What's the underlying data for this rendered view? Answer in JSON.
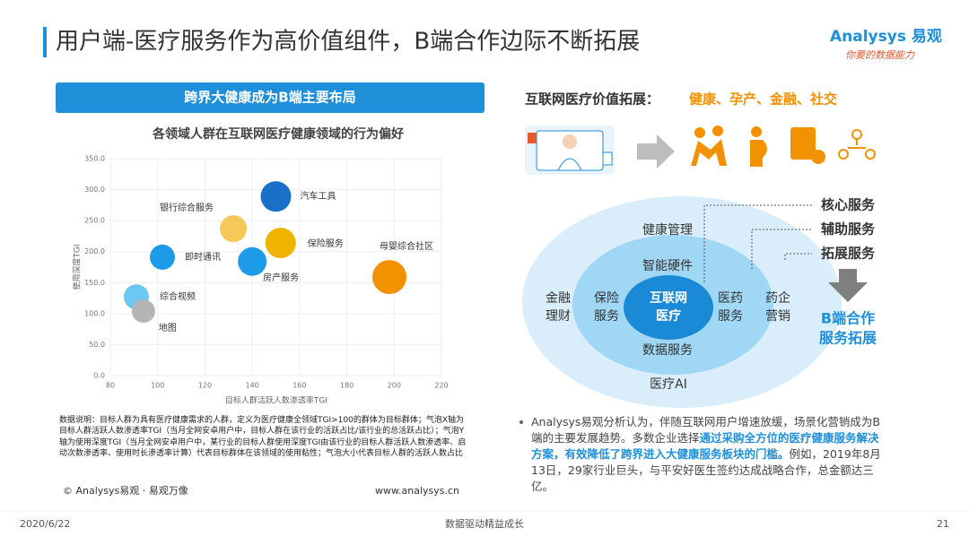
{
  "header": {
    "title": "用户端-医疗服务作为高价值组件，B端合作边际不断拓展",
    "logo": "Analysys 易观",
    "tagline": "你要的数据能力"
  },
  "left": {
    "banner": "跨界大健康成为B端主要布局",
    "note": "数据说明：目标人群为具有医疗健康需求的人群，定义为医疗健康全领域TGI>100的群体为目标群体；气泡X轴为目标人群活跃人数渗透率TGI（当月全网安卓用户中，目标人群在该行业的活跃占比/该行业的总活跃占比）；气泡Y轴为使用深度TGI（当月全网安卓用户中，某行业的目标人群使用深度TGI由该行业的目标人群活跃人数渗透率、启动次数渗透率、使用时长渗透率计算）代表目标群体在该领域的使用粘性；气泡大小代表目标人群的活跃人数占比",
    "copyright": "© Analysys易观 · 易观万像",
    "url": "www.analysys.cn"
  },
  "chart_data": {
    "type": "bubble",
    "title": "各领域人群在互联网医疗健康领域的行为偏好",
    "x_label": "目标人群活跃人数渗透率TGI",
    "y_label": "使用深度TGI",
    "xlim": [
      80,
      220
    ],
    "xticks": [
      80,
      100,
      120,
      140,
      160,
      180,
      200,
      220
    ],
    "ylim": [
      0,
      350
    ],
    "yticks": [
      {
        "value": 0,
        "label": "0.0"
      },
      {
        "value": 50,
        "label": "50.0"
      },
      {
        "value": 100,
        "label": "100.0"
      },
      {
        "value": 150,
        "label": "150.0"
      },
      {
        "value": 200,
        "label": "200.0"
      },
      {
        "value": 250,
        "label": "250.0"
      },
      {
        "value": 300,
        "label": "300.0"
      },
      {
        "value": 350,
        "label": "350.0"
      }
    ],
    "grid": true,
    "series": [
      {
        "name": "汽车工具",
        "color": "#1a6fc9",
        "x": [
          150
        ],
        "values": [
          289
        ],
        "sizes": [
          17
        ]
      },
      {
        "name": "银行综合服务",
        "color": "#f5c85a",
        "x": [
          132
        ],
        "values": [
          237
        ],
        "sizes": [
          15
        ]
      },
      {
        "name": "保险服务",
        "color": "#f0b400",
        "x": [
          152
        ],
        "values": [
          214
        ],
        "sizes": [
          17
        ]
      },
      {
        "name": "母婴综合社区",
        "color": "#f39200",
        "x": [
          198
        ],
        "values": [
          159
        ],
        "sizes": [
          19
        ]
      },
      {
        "name": "即时通讯",
        "color": "#1e9be8",
        "x": [
          102
        ],
        "values": [
          191
        ],
        "sizes": [
          14
        ]
      },
      {
        "name": "房产服务",
        "color": "#1e9be8",
        "x": [
          140
        ],
        "values": [
          184
        ],
        "sizes": [
          16
        ]
      },
      {
        "name": "综合视频",
        "color": "#6cc8f0",
        "x": [
          91
        ],
        "values": [
          127
        ],
        "sizes": [
          14
        ]
      },
      {
        "name": "地图",
        "color": "#b5b5b5",
        "x": [
          94
        ],
        "values": [
          104
        ],
        "sizes": [
          13
        ]
      }
    ]
  },
  "right": {
    "heading": "互联网医疗价值拓展：",
    "heading_items": "健康、孕产、金融、社交",
    "core": "互联网医疗",
    "core_lines": [
      "互联网",
      "医疗"
    ],
    "mid": {
      "top": "智能硬件",
      "left": [
        "保险",
        "服务"
      ],
      "right": [
        "医药",
        "服务"
      ],
      "bottom": "数据服务"
    },
    "outer": {
      "top": "健康管理",
      "left": [
        "金融",
        "理财"
      ],
      "right": [
        "药企",
        "营销"
      ],
      "bottom": "医疗AI"
    },
    "levels": [
      "核心服务",
      "辅助服务",
      "拓展服务"
    ],
    "result": [
      "B端合作",
      "服务拓展"
    ],
    "bullet": [
      "Analysys易观分析认为，伴随互联网用户增速放缓，场景化营销成为B端的主要发展趋势。多数企业选择",
      "通过采购全方位的医疗健康服务解决方案，有效降低了跨界进入大健康服务板块的门槛。",
      "例如，2019年8月13日，29家行业巨头，与平安好医生签约达成战略合作，总金额达三亿。"
    ]
  },
  "footer": {
    "date": "2020/6/22",
    "slogan": "数据驱动精益成长",
    "page": "21"
  }
}
